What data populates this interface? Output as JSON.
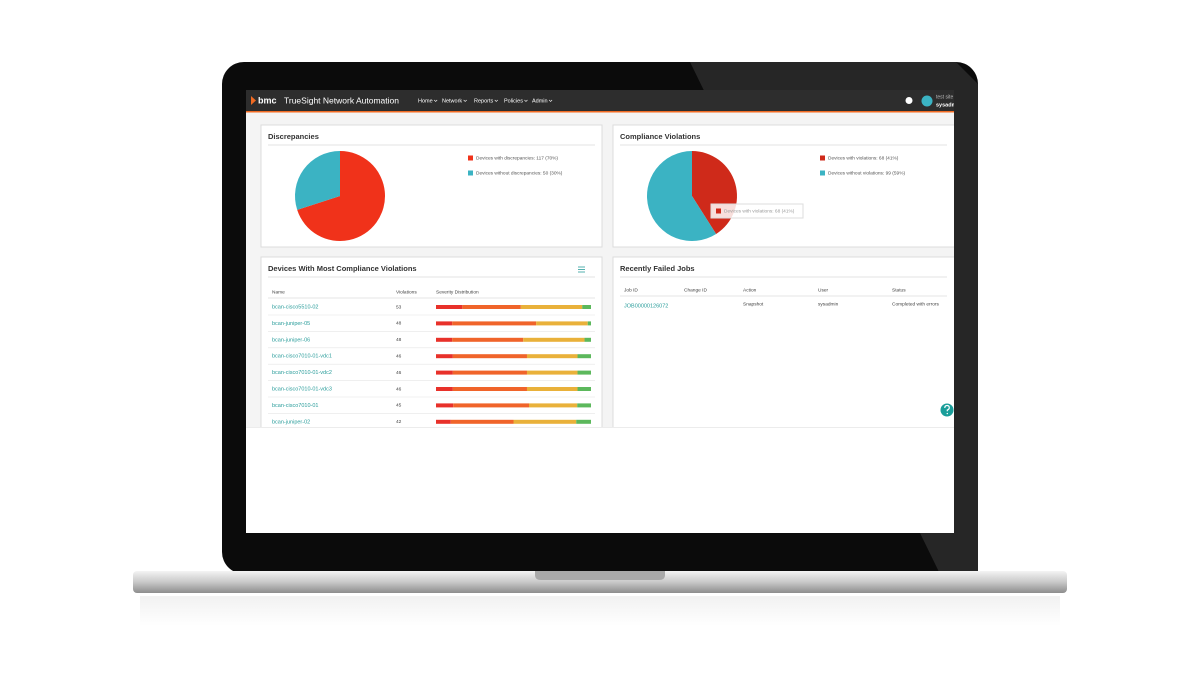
{
  "header": {
    "logo": "bmc",
    "product": "TrueSight Network Automation",
    "menu": [
      "Home",
      "Network",
      "Reports",
      "Policies",
      "Admin"
    ],
    "user_site": "test site",
    "user_name": "sysadmin"
  },
  "discrepancies": {
    "title": "Discrepancies",
    "slices": [
      {
        "label": "Devices with discrepancies: 117 (70%)",
        "value": 70,
        "color": "#f0321a"
      },
      {
        "label": "Devices without discrepancies: 50 (30%)",
        "value": 30,
        "color": "#3bb3c3"
      }
    ]
  },
  "compliance": {
    "title": "Compliance Violations",
    "slices": [
      {
        "label": "Devices with violations: 68 (41%)",
        "value": 41,
        "color": "#cf2a1a"
      },
      {
        "label": "Devices without violations: 99 (59%)",
        "value": 59,
        "color": "#3bb3c3"
      }
    ],
    "tooltip": "Devices with violations: 68 (41%)"
  },
  "devices": {
    "title": "Devices With Most Compliance Violations",
    "columns": [
      "Name",
      "Violations",
      "Severity Distribution"
    ],
    "severity_colors": [
      "#e8312a",
      "#f0642a",
      "#e9b13a",
      "#5cb85c"
    ],
    "rows": [
      {
        "name": "bcan-cisco5510-02",
        "violations": 53,
        "severity": [
          9,
          20,
          21,
          3
        ]
      },
      {
        "name": "bcan-juniper-05",
        "violations": 48,
        "severity": [
          5,
          26,
          16,
          1
        ]
      },
      {
        "name": "bcan-juniper-06",
        "violations": 48,
        "severity": [
          5,
          22,
          19,
          2
        ]
      },
      {
        "name": "bcan-cisco7010-01-vdc1",
        "violations": 46,
        "severity": [
          5,
          22,
          15,
          4
        ]
      },
      {
        "name": "bcan-cisco7010-01-vdc2",
        "violations": 46,
        "severity": [
          5,
          22,
          15,
          4
        ]
      },
      {
        "name": "bcan-cisco7010-01-vdc3",
        "violations": 46,
        "severity": [
          5,
          22,
          15,
          4
        ]
      },
      {
        "name": "bcan-cisco7010-01",
        "violations": 45,
        "severity": [
          5,
          22,
          14,
          4
        ]
      },
      {
        "name": "bcan-juniper-02",
        "violations": 42,
        "severity": [
          4,
          17,
          17,
          4
        ]
      }
    ]
  },
  "failed_jobs": {
    "title": "Recently Failed Jobs",
    "columns": [
      "Job ID",
      "Change ID",
      "Action",
      "User",
      "Status"
    ],
    "rows": [
      {
        "job_id": "JOB00000126072",
        "action": "Snapshot",
        "user": "sysadmin",
        "status": "Completed with errors"
      }
    ]
  }
}
